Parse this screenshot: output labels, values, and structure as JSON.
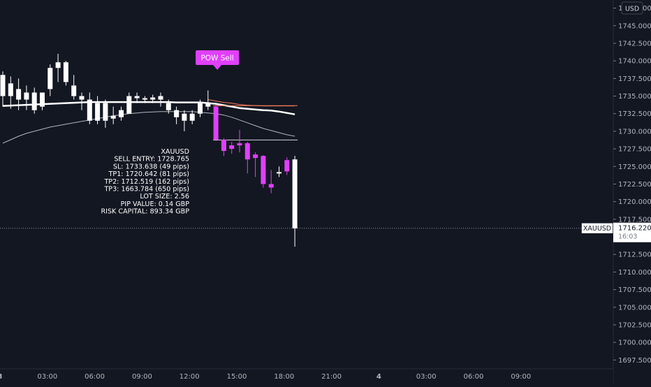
{
  "chart_data": {
    "type": "candlestick",
    "symbol": "XAUUSD",
    "currency_label": "USD",
    "ylim": [
      1696.0,
      1750.0
    ],
    "y_ticks": [
      1697.5,
      1700,
      1702.5,
      1705,
      1707.5,
      1710,
      1712.5,
      1715,
      1717.5,
      1720,
      1722.5,
      1725,
      1727.5,
      1730,
      1732.5,
      1735,
      1737.5,
      1740,
      1742.5,
      1745,
      1747.5
    ],
    "y_tick_labels": [
      "1697.500",
      "1700.000",
      "1702.500",
      "1705.000",
      "1707.500",
      "1710.000",
      "1712.500",
      "1715.000",
      "1717.500",
      "1720.000",
      "1722.500",
      "1725.000",
      "1727.500",
      "1730.000",
      "1732.500",
      "1735.000",
      "1737.500",
      "1740.000",
      "1742.500",
      "1745.000",
      "1747.500"
    ],
    "x_ticks": [
      {
        "label": "3",
        "bar": 0
      },
      {
        "label": "03:00",
        "bar": 6
      },
      {
        "label": "06:00",
        "bar": 12
      },
      {
        "label": "09:00",
        "bar": 18
      },
      {
        "label": "12:00",
        "bar": 24
      },
      {
        "label": "15:00",
        "bar": 30
      },
      {
        "label": "18:00",
        "bar": 36
      },
      {
        "label": "21:00",
        "bar": 42
      },
      {
        "label": "4",
        "bar": 48
      },
      {
        "label": "03:00",
        "bar": 54
      },
      {
        "label": "06:00",
        "bar": 60
      },
      {
        "label": "09:00",
        "bar": 66
      }
    ],
    "candles": [
      {
        "o": 1738.0,
        "h": 1738.5,
        "l": 1733.5,
        "c": 1735.0,
        "color": "white"
      },
      {
        "o": 1735.0,
        "h": 1737.8,
        "l": 1733.2,
        "c": 1736.8,
        "color": "white"
      },
      {
        "o": 1736.0,
        "h": 1737.5,
        "l": 1733.0,
        "c": 1734.5,
        "color": "white"
      },
      {
        "o": 1734.5,
        "h": 1736.5,
        "l": 1733.0,
        "c": 1735.5,
        "color": "white"
      },
      {
        "o": 1735.5,
        "h": 1736.2,
        "l": 1732.5,
        "c": 1733.0,
        "color": "white"
      },
      {
        "o": 1733.5,
        "h": 1735.5,
        "l": 1733.0,
        "c": 1735.5,
        "color": "white"
      },
      {
        "o": 1736.0,
        "h": 1739.5,
        "l": 1735.0,
        "c": 1739.0,
        "color": "white"
      },
      {
        "o": 1739.0,
        "h": 1741.0,
        "l": 1737.0,
        "c": 1739.8,
        "color": "white"
      },
      {
        "o": 1739.8,
        "h": 1740.0,
        "l": 1736.5,
        "c": 1737.0,
        "color": "white"
      },
      {
        "o": 1736.5,
        "h": 1738.0,
        "l": 1734.5,
        "c": 1735.0,
        "color": "white"
      },
      {
        "o": 1735.0,
        "h": 1735.5,
        "l": 1733.0,
        "c": 1734.5,
        "color": "white"
      },
      {
        "o": 1734.5,
        "h": 1735.5,
        "l": 1731.0,
        "c": 1731.5,
        "color": "white"
      },
      {
        "o": 1731.5,
        "h": 1735.0,
        "l": 1731.0,
        "c": 1734.0,
        "color": "white"
      },
      {
        "o": 1734.0,
        "h": 1734.5,
        "l": 1730.5,
        "c": 1731.5,
        "color": "white"
      },
      {
        "o": 1731.8,
        "h": 1733.5,
        "l": 1731.0,
        "c": 1732.2,
        "color": "white"
      },
      {
        "o": 1732.0,
        "h": 1733.5,
        "l": 1731.5,
        "c": 1733.0,
        "color": "white"
      },
      {
        "o": 1732.5,
        "h": 1735.5,
        "l": 1732.5,
        "c": 1735.0,
        "color": "white"
      },
      {
        "o": 1735.0,
        "h": 1735.5,
        "l": 1734.0,
        "c": 1734.7,
        "color": "white"
      },
      {
        "o": 1734.7,
        "h": 1735.0,
        "l": 1734.0,
        "c": 1734.5,
        "color": "white"
      },
      {
        "o": 1734.8,
        "h": 1735.2,
        "l": 1734.0,
        "c": 1734.5,
        "color": "white"
      },
      {
        "o": 1735.0,
        "h": 1735.5,
        "l": 1733.5,
        "c": 1734.5,
        "color": "white"
      },
      {
        "o": 1734.0,
        "h": 1734.5,
        "l": 1732.5,
        "c": 1733.0,
        "color": "white"
      },
      {
        "o": 1733.0,
        "h": 1733.5,
        "l": 1731.0,
        "c": 1732.0,
        "color": "white"
      },
      {
        "o": 1732.5,
        "h": 1733.0,
        "l": 1730.0,
        "c": 1731.5,
        "color": "white"
      },
      {
        "o": 1731.5,
        "h": 1733.0,
        "l": 1731.0,
        "c": 1732.5,
        "color": "white"
      },
      {
        "o": 1732.5,
        "h": 1734.5,
        "l": 1732.0,
        "c": 1734.0,
        "color": "white"
      },
      {
        "o": 1734.0,
        "h": 1735.8,
        "l": 1733.0,
        "c": 1733.5,
        "color": "white"
      },
      {
        "o": 1733.5,
        "h": 1733.8,
        "l": 1728.6,
        "c": 1728.8,
        "color": "pink"
      },
      {
        "o": 1728.8,
        "h": 1729.0,
        "l": 1726.5,
        "c": 1727.2,
        "color": "pink"
      },
      {
        "o": 1727.5,
        "h": 1728.5,
        "l": 1726.8,
        "c": 1728.0,
        "color": "pink"
      },
      {
        "o": 1728.0,
        "h": 1730.2,
        "l": 1727.0,
        "c": 1728.3,
        "color": "pink"
      },
      {
        "o": 1728.3,
        "h": 1728.5,
        "l": 1724.0,
        "c": 1726.0,
        "color": "pink"
      },
      {
        "o": 1726.7,
        "h": 1727.0,
        "l": 1723.5,
        "c": 1726.2,
        "color": "pink"
      },
      {
        "o": 1726.5,
        "h": 1726.6,
        "l": 1722.0,
        "c": 1722.5,
        "color": "pink"
      },
      {
        "o": 1722.5,
        "h": 1724.5,
        "l": 1721.2,
        "c": 1722.0,
        "color": "pink"
      },
      {
        "o": 1724.0,
        "h": 1725.0,
        "l": 1723.5,
        "c": 1724.2,
        "color": "white"
      },
      {
        "o": 1724.3,
        "h": 1726.3,
        "l": 1723.8,
        "c": 1725.9,
        "color": "pink"
      },
      {
        "o": 1726.0,
        "h": 1726.5,
        "l": 1713.6,
        "c": 1716.2,
        "color": "white"
      }
    ],
    "ma_fast": [
      1733.6,
      1733.65,
      1733.7,
      1733.75,
      1733.8,
      1733.85,
      1733.9,
      1733.95,
      1734.0,
      1734.05,
      1734.1,
      1734.15,
      1734.15,
      1734.15,
      1734.15,
      1734.15,
      1734.15,
      1734.15,
      1734.15,
      1734.15,
      1734.15,
      1734.15,
      1734.1,
      1734.1,
      1734.1,
      1734.1,
      1734.0,
      1733.9,
      1733.7,
      1733.5,
      1733.3,
      1733.2,
      1733.1,
      1733.0,
      1732.95,
      1732.8,
      1732.6,
      1732.4
    ],
    "ma_orange": [
      null,
      null,
      null,
      null,
      null,
      null,
      null,
      null,
      null,
      null,
      null,
      null,
      null,
      null,
      null,
      null,
      null,
      null,
      null,
      null,
      null,
      null,
      null,
      null,
      null,
      null,
      1734.5,
      1734.3,
      1734.1,
      1734.0,
      1733.8,
      1733.7,
      1733.65,
      1733.6,
      1733.6,
      1733.6,
      1733.6,
      1733.6
    ],
    "ma_slow": [
      1728.3,
      1728.8,
      1729.3,
      1729.7,
      1730.0,
      1730.3,
      1730.6,
      1730.8,
      1731.0,
      1731.2,
      1731.4,
      1731.6,
      1731.8,
      1732.0,
      1732.2,
      1732.35,
      1732.5,
      1732.6,
      1732.7,
      1732.75,
      1732.8,
      1732.8,
      1732.8,
      1732.8,
      1732.8,
      1732.7,
      1732.6,
      1732.5,
      1732.3,
      1732.0,
      1731.6,
      1731.2,
      1730.8,
      1730.4,
      1730.1,
      1729.8,
      1729.5,
      1729.3
    ],
    "entry_line": {
      "y": 1728.765,
      "from_bar": 27,
      "to_bar": 37
    },
    "sl_line": {
      "y": 1733.638,
      "from_bar": 27,
      "to_bar": 37
    },
    "signal": {
      "label": "POW Sell",
      "bar": 27,
      "color": "#e040fb"
    },
    "info_lines": [
      "XAUUSD",
      "SELL ENTRY: 1728.765",
      "SL: 1733.638 (49 pips)",
      "TP1: 1720.642 (81 pips)",
      "TP2: 1712.519 (162 pips)",
      "TP3: 1663.784 (650 pips)",
      "LOT SIZE: 2.56",
      "PIP VALUE: 0.14 GBP",
      "RISK CAPITAL: 893.34 GBP"
    ],
    "last_price": {
      "symbol": "XAUUSD",
      "value": "1716.220",
      "countdown": "16:03",
      "y": 1716.22
    },
    "colors": {
      "background": "#131722",
      "candle_white": "#ffffff",
      "candle_pink": "#e040fb",
      "ma_fast": "#ffffff",
      "ma_slow": "#b2b5be",
      "ma_orange": "#f57c5c",
      "axis_text": "#b2b5be"
    }
  }
}
